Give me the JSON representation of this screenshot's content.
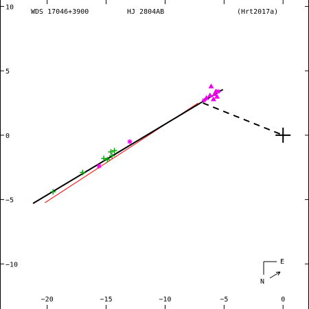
{
  "header": {
    "left": "WDS 17046+3900",
    "center": "HJ 2804AB",
    "right": "(Hrt2017a)"
  },
  "compass": {
    "north": "N",
    "east": "E"
  },
  "colors": {
    "axis": "#000000",
    "fit_line": "#000000",
    "reference_line": "#ff0000",
    "cross_points": "#00aa00",
    "triangle_points": "#ee00ee",
    "star_points": "#ee00ee"
  },
  "chart_data": {
    "type": "scatter",
    "xlim": [
      -24,
      2.2
    ],
    "ylim": [
      -13.5,
      10.5
    ],
    "x_ticks": [
      -20,
      -15,
      -10,
      -5,
      0
    ],
    "y_ticks": [
      10,
      5,
      0,
      -5,
      -10
    ],
    "x_tick_labels": [
      "−20",
      "−15",
      "−10",
      "−5",
      "0"
    ],
    "y_tick_labels": [
      "10",
      "5",
      "0",
      "−5",
      "−10"
    ],
    "primary": {
      "x": 0,
      "y": 0
    },
    "fit_line": [
      [
        -21.2,
        -5.3
      ],
      [
        -5.1,
        3.55
      ]
    ],
    "reference_line": [
      [
        -20.2,
        -5.25
      ],
      [
        -7.2,
        2.5
      ]
    ],
    "connector": [
      [
        -6.8,
        2.5
      ],
      [
        0,
        0
      ]
    ],
    "cross_points": [
      {
        "x": -19.5,
        "y": -4.4
      },
      {
        "x": -17.0,
        "y": -2.9
      },
      {
        "x": -15.2,
        "y": -1.8
      },
      {
        "x": -14.9,
        "y": -1.9
      },
      {
        "x": -14.6,
        "y": -1.3
      },
      {
        "x": -14.3,
        "y": -1.2
      },
      {
        "x": -14.5,
        "y": -1.6
      }
    ],
    "star_points": [
      {
        "x": -15.6,
        "y": -2.4
      },
      {
        "x": -13.0,
        "y": -0.5
      },
      {
        "x": -6.7,
        "y": 2.7
      },
      {
        "x": -5.5,
        "y": 3.4
      }
    ],
    "triangle_points": [
      {
        "x": -6.1,
        "y": 3.8
      },
      {
        "x": -6.2,
        "y": 3.1
      },
      {
        "x": -5.8,
        "y": 3.2
      },
      {
        "x": -5.6,
        "y": 3.0
      },
      {
        "x": -5.9,
        "y": 2.8
      },
      {
        "x": -6.5,
        "y": 2.9
      },
      {
        "x": -5.7,
        "y": 3.4
      }
    ]
  }
}
